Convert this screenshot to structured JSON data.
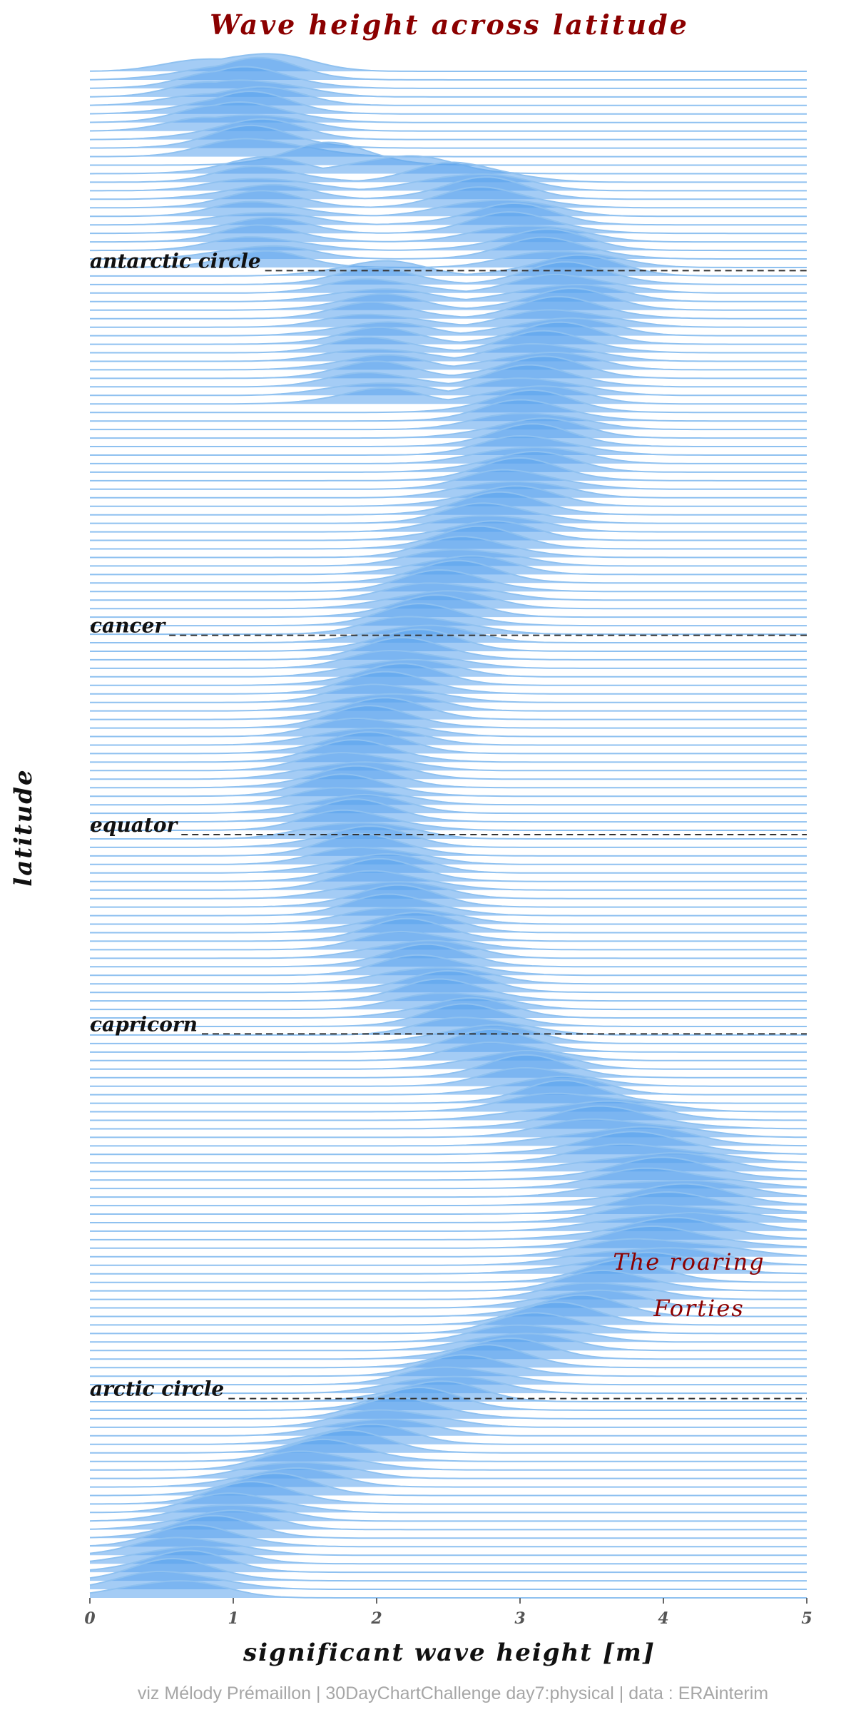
{
  "chart_data": {
    "type": "area",
    "title": "Wave height across latitude",
    "xlabel": "significant wave height [m]",
    "ylabel": "latitude",
    "x_ticks": [
      "0",
      "1",
      "2",
      "3",
      "4",
      "5"
    ],
    "xlim": [
      0,
      5
    ],
    "ylim": [
      -90,
      90
    ],
    "y_direction": "south-at-top",
    "grid": false,
    "legend": "none",
    "ridge_count": 180,
    "reference_lines": [
      {
        "label": "antarctic circle",
        "latitude": -66.5
      },
      {
        "label": "cancer",
        "latitude": -23.5
      },
      {
        "label": "equator",
        "latitude": 0
      },
      {
        "label": "capricorn",
        "latitude": 23.5
      },
      {
        "label": "arctic circle",
        "latitude": 66.5
      }
    ],
    "annotation": {
      "lines": [
        "The roaring",
        "Forties"
      ],
      "latitude": 43,
      "x": 4.2
    },
    "mode_curve": [
      {
        "lat": -90,
        "peak": 1.15
      },
      {
        "lat": -85,
        "peak": 1.1
      },
      {
        "lat": -80,
        "peak": 1.15
      },
      {
        "lat": -77,
        "peak": 2.6
      },
      {
        "lat": -72,
        "peak": 2.9
      },
      {
        "lat": -66,
        "peak": 3.35
      },
      {
        "lat": -60,
        "peak": 3.3
      },
      {
        "lat": -55,
        "peak": 3.15
      },
      {
        "lat": -50,
        "peak": 3.05
      },
      {
        "lat": -45,
        "peak": 3.1
      },
      {
        "lat": -40,
        "peak": 2.95
      },
      {
        "lat": -35,
        "peak": 2.75
      },
      {
        "lat": -30,
        "peak": 2.55
      },
      {
        "lat": -25,
        "peak": 2.35
      },
      {
        "lat": -20,
        "peak": 2.2
      },
      {
        "lat": -15,
        "peak": 2.05
      },
      {
        "lat": -10,
        "peak": 1.9
      },
      {
        "lat": -5,
        "peak": 1.8
      },
      {
        "lat": 0,
        "peak": 1.85
      },
      {
        "lat": 5,
        "peak": 2.0
      },
      {
        "lat": 10,
        "peak": 2.15
      },
      {
        "lat": 15,
        "peak": 2.3
      },
      {
        "lat": 20,
        "peak": 2.5
      },
      {
        "lat": 25,
        "peak": 2.75
      },
      {
        "lat": 30,
        "peak": 3.15
      },
      {
        "lat": 35,
        "peak": 3.6
      },
      {
        "lat": 40,
        "peak": 3.95
      },
      {
        "lat": 45,
        "peak": 4.1
      },
      {
        "lat": 50,
        "peak": 3.95
      },
      {
        "lat": 55,
        "peak": 3.55
      },
      {
        "lat": 60,
        "peak": 3.05
      },
      {
        "lat": 65,
        "peak": 2.55
      },
      {
        "lat": 70,
        "peak": 2.1
      },
      {
        "lat": 75,
        "peak": 1.55
      },
      {
        "lat": 80,
        "peak": 1.05
      },
      {
        "lat": 85,
        "peak": 0.7
      },
      {
        "lat": 90,
        "peak": 0.55
      }
    ],
    "secondary_modes": [
      {
        "lat_from": -90,
        "lat_to": -82,
        "peak": 0.9
      },
      {
        "lat_from": -78,
        "lat_to": -66,
        "peak": 1.2
      },
      {
        "lat_from": -66,
        "lat_to": -50,
        "peak": 2.0
      }
    ],
    "colors": {
      "ridge_line": "#8fc1f0",
      "ridge_fill": "#5aa3ec",
      "title": "#8b0000",
      "annotation": "#8b0000"
    }
  },
  "caption": "viz Mélody Prémaillon | 30DayChartChallenge day7:physical | data : ERAinterim"
}
